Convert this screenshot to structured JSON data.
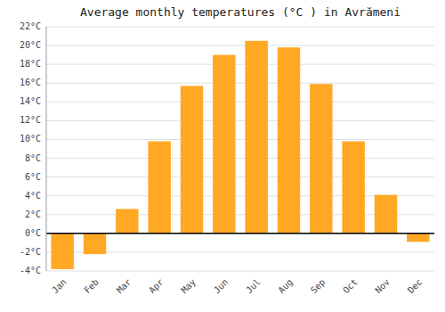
{
  "chart_data": {
    "type": "bar",
    "title": "Average monthly temperatures (°C ) in Avrămeni",
    "categories": [
      "Jan",
      "Feb",
      "Mar",
      "Apr",
      "May",
      "Jun",
      "Jul",
      "Aug",
      "Sep",
      "Oct",
      "Nov",
      "Dec"
    ],
    "values": [
      -3.8,
      -2.2,
      2.6,
      9.8,
      15.7,
      19.0,
      20.5,
      19.8,
      15.9,
      9.8,
      4.1,
      -0.9
    ],
    "color": "#FFA824",
    "ylim": [
      -4,
      22
    ],
    "yticks": [
      {
        "value": -4,
        "label": "-4°C"
      },
      {
        "value": -2,
        "label": "-2°C"
      },
      {
        "value": 0,
        "label": "0°C"
      },
      {
        "value": 2,
        "label": "2°C"
      },
      {
        "value": 4,
        "label": "4°C"
      },
      {
        "value": 6,
        "label": "6°C"
      },
      {
        "value": 8,
        "label": "8°C"
      },
      {
        "value": 10,
        "label": "10°C"
      },
      {
        "value": 12,
        "label": "12°C"
      },
      {
        "value": 14,
        "label": "14°C"
      },
      {
        "value": 16,
        "label": "16°C"
      },
      {
        "value": 18,
        "label": "18°C"
      },
      {
        "value": 20,
        "label": "20°C"
      },
      {
        "value": 22,
        "label": "22°C"
      }
    ],
    "grid": true
  }
}
